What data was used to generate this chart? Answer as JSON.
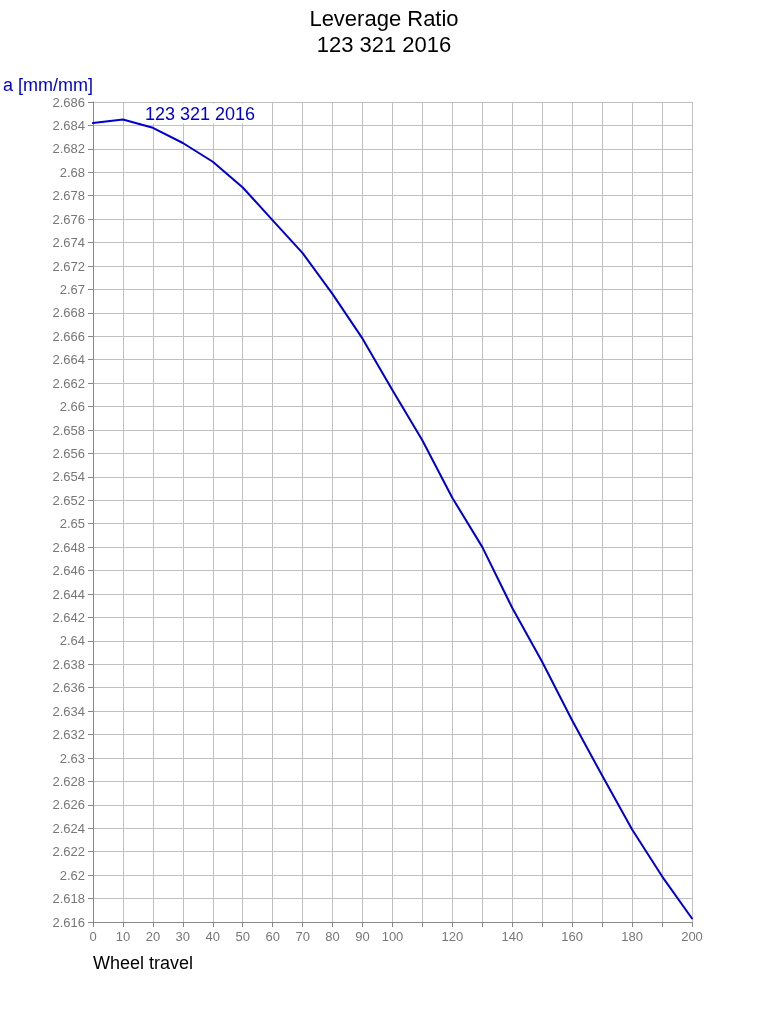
{
  "chart_data": {
    "type": "line",
    "title": "Leverage Ratio",
    "subtitle": "123 321 2016",
    "xlabel": "Wheel travel",
    "ylabel": "a [mm/mm]",
    "x": [
      0,
      10,
      20,
      30,
      40,
      50,
      60,
      70,
      80,
      90,
      100,
      110,
      120,
      130,
      140,
      150,
      160,
      170,
      180,
      190,
      200
    ],
    "series": [
      {
        "name": "123 321 2016",
        "color": "#0000cc",
        "values": [
          2.6842,
          2.6845,
          2.6838,
          2.6825,
          2.6809,
          2.6787,
          2.6759,
          2.6731,
          2.6696,
          2.6658,
          2.6614,
          2.6571,
          2.6522,
          2.648,
          2.6428,
          2.6382,
          2.6332,
          2.6285,
          2.6239,
          2.6199,
          2.6163
        ]
      }
    ],
    "xlim": [
      0,
      200
    ],
    "xticks": [
      0,
      10,
      20,
      30,
      40,
      50,
      60,
      70,
      80,
      90,
      100,
      {
        "value": 110,
        "label": null
      },
      120,
      {
        "value": 130,
        "label": null
      },
      140,
      {
        "value": 150,
        "label": null
      },
      160,
      {
        "value": 170,
        "label": null
      },
      180,
      {
        "value": 190,
        "label": null
      },
      200
    ],
    "ylim": [
      2.616,
      2.686
    ],
    "yticks": [
      2.616,
      2.618,
      2.62,
      2.622,
      2.624,
      2.626,
      2.628,
      2.63,
      2.632,
      2.634,
      2.636,
      2.638,
      2.64,
      2.642,
      2.644,
      2.646,
      2.648,
      2.65,
      2.652,
      2.654,
      2.656,
      2.658,
      2.66,
      2.662,
      2.664,
      2.666,
      2.668,
      2.67,
      2.672,
      2.674,
      2.676,
      2.678,
      2.68,
      2.682,
      2.684,
      2.686
    ],
    "grid": true,
    "marker": "none",
    "line_style": "solid",
    "legend": false
  }
}
